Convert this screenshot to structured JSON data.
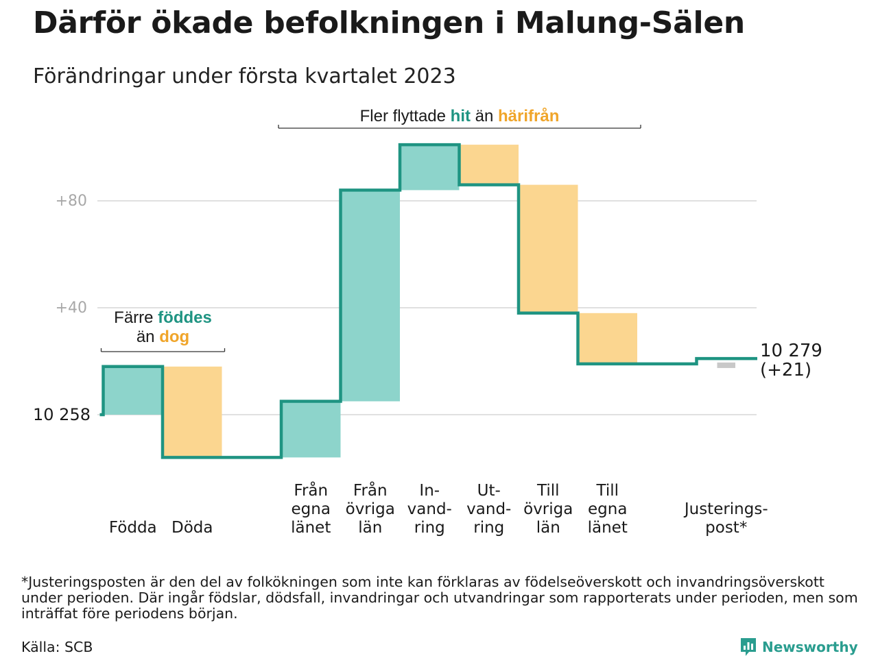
{
  "title": "Därför ökade befolkningen i Malung-Sälen",
  "subtitle": "Förändringar under första kvartalet 2023",
  "colors": {
    "increase": "#8dd4cb",
    "decrease": "#fbd690",
    "line": "#1f9482",
    "adjustment": "#c8c8c8",
    "grid": "#e0e0e0",
    "teal_text": "#1f9482",
    "orange_text": "#f0a52a"
  },
  "chart_data": {
    "type": "waterfall",
    "start_value": 10258,
    "start_label": "10 258",
    "end_value": 10279,
    "end_label": "10 279",
    "end_change_label": "(+21)",
    "y_ticks": [
      {
        "value": 40,
        "label": "+40"
      },
      {
        "value": 80,
        "label": "+80"
      }
    ],
    "steps": [
      {
        "label": "Födda",
        "change": 18,
        "kind": "increase"
      },
      {
        "label": "Döda",
        "change": -34,
        "kind": "decrease"
      },
      {
        "label": "",
        "change": 0,
        "kind": "gap"
      },
      {
        "label": "Från\negna\nlänet",
        "change": 21,
        "kind": "increase"
      },
      {
        "label": "Från\növriga\nlän",
        "change": 79,
        "kind": "increase"
      },
      {
        "label": "In-\nvand-\nring",
        "change": 17,
        "kind": "increase"
      },
      {
        "label": "Ut-\nvand-\nring",
        "change": -15,
        "kind": "decrease"
      },
      {
        "label": "Till\növriga\nlän",
        "change": -48,
        "kind": "decrease"
      },
      {
        "label": "Till\negna\nlänet",
        "change": -19,
        "kind": "decrease"
      },
      {
        "label": "",
        "change": 0,
        "kind": "gap"
      },
      {
        "label": "Justerings-\npost*",
        "change": 2,
        "kind": "adjustment"
      }
    ],
    "annotations": {
      "births": {
        "line1_prefix": "Färre ",
        "line1_highlight": "föddes",
        "line2_prefix": "än ",
        "line2_highlight": "dog"
      },
      "migration": {
        "prefix": "Fler flyttade ",
        "highlight1": "hit",
        "middle": " än ",
        "highlight2": "härifrån"
      }
    }
  },
  "footnote": "*Justeringsposten är den del av folkökningen som inte kan förklaras av födelseöverskott och invandringsöverskott under perioden. Där ingår födslar, dödsfall, invandringar och utvandringar som rapporterats under perioden, men som inträffat före periodens början.",
  "source": "Källa: SCB",
  "logo": {
    "text": "Newsworthy",
    "icon": "bar-chart-logo-icon"
  }
}
